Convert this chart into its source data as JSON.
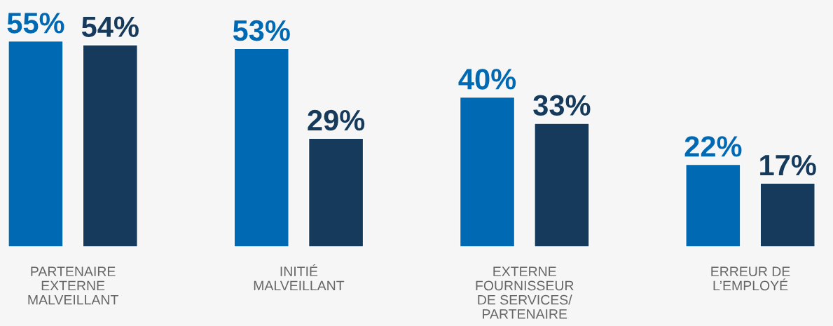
{
  "chart_data": {
    "type": "bar",
    "categories": [
      "PARTENAIRE\nEXTERNE\nMALVEILLANT",
      "INITIÉ\nMALVEILLANT",
      "EXTERNE\nFOURNISSEUR\nDE SERVICES/\nPARTENAIRE",
      "ERREUR DE\nL’EMPLOYÉ"
    ],
    "series": [
      {
        "color": "#0069b4",
        "values": [
          55,
          53,
          40,
          22
        ],
        "value_labels": [
          "55%",
          "53%",
          "40%",
          "22%"
        ]
      },
      {
        "color": "#153a5b",
        "values": [
          54,
          29,
          33,
          17
        ],
        "value_labels": [
          "54%",
          "29%",
          "33%",
          "17%"
        ]
      }
    ],
    "grid": false,
    "legend": false
  }
}
